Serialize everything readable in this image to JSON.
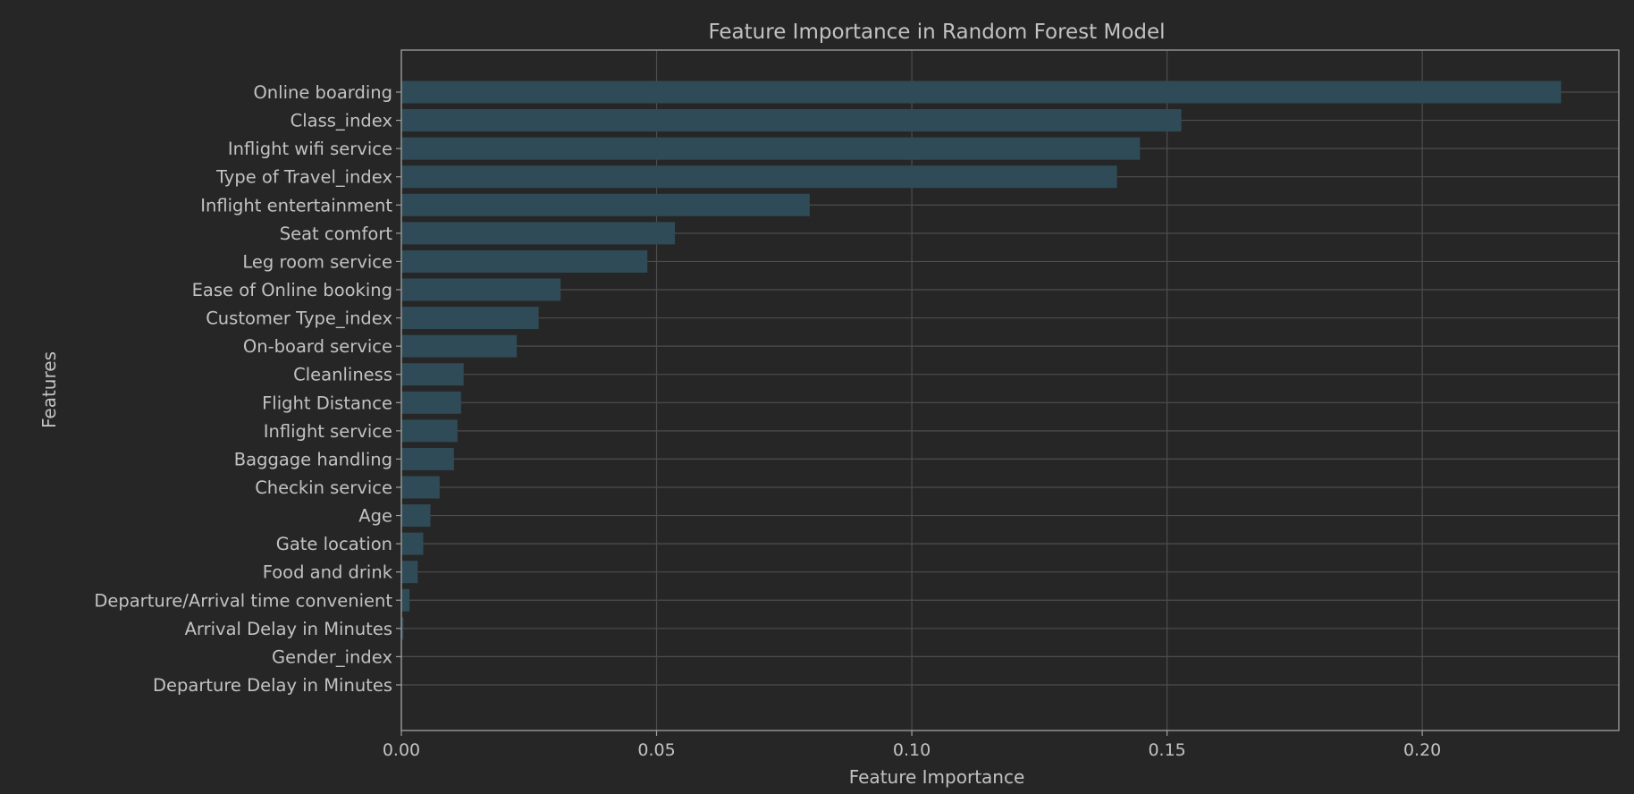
{
  "chart_data": {
    "type": "bar",
    "orientation": "horizontal",
    "title": "Feature Importance in Random Forest Model",
    "xlabel": "Feature Importance",
    "ylabel": "Features",
    "xlim": [
      0,
      0.2385
    ],
    "xticks": [
      0.0,
      0.05,
      0.1,
      0.15,
      0.2
    ],
    "xtick_labels": [
      "0.00",
      "0.05",
      "0.10",
      "0.15",
      "0.20"
    ],
    "grid": true,
    "bar_color": "#2f4b57",
    "background_color": "#262626",
    "text_color": "#c2c2c2",
    "grid_color": "#4d4d4d",
    "categories": [
      "Online boarding",
      "Class_index",
      "Inflight wifi service",
      "Type of Travel_index",
      "Inflight entertainment",
      "Seat comfort",
      "Leg room service",
      "Ease of Online booking",
      "Customer Type_index",
      "On-board service",
      "Cleanliness",
      "Flight Distance",
      "Inflight service",
      "Baggage handling",
      "Checkin service",
      "Age",
      "Gate location",
      "Food and drink",
      "Departure/Arrival time convenient",
      "Arrival Delay in Minutes",
      "Gender_index",
      "Departure Delay in Minutes"
    ],
    "values": [
      0.2272,
      0.1528,
      0.1447,
      0.1402,
      0.08,
      0.0536,
      0.0482,
      0.0312,
      0.0269,
      0.0226,
      0.0122,
      0.0117,
      0.011,
      0.0103,
      0.0075,
      0.0057,
      0.0043,
      0.0032,
      0.0016,
      0.0004,
      0.0001,
      0.0001
    ]
  }
}
